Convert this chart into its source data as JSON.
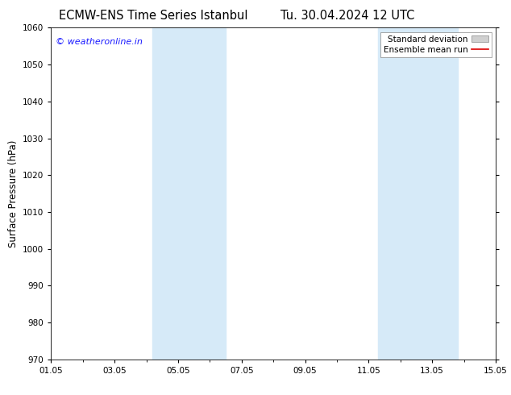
{
  "title_left": "ECMW-ENS Time Series Istanbul",
  "title_right": "Tu. 30.04.2024 12 UTC",
  "ylabel": "Surface Pressure (hPa)",
  "ylim": [
    970,
    1060
  ],
  "yticks": [
    970,
    980,
    990,
    1000,
    1010,
    1020,
    1030,
    1040,
    1050,
    1060
  ],
  "xtick_labels": [
    "01.05",
    "03.05",
    "05.05",
    "07.05",
    "09.05",
    "11.05",
    "13.05",
    "15.05"
  ],
  "xtick_positions": [
    0,
    2,
    4,
    6,
    8,
    10,
    12,
    14
  ],
  "x_total_days": 14,
  "shaded_bands": [
    {
      "x_start": 3.3,
      "x_end": 4.0,
      "color": "#d6eaf8"
    },
    {
      "x_start": 4.0,
      "x_end": 5.5,
      "color": "#d6eaf8"
    },
    {
      "x_start": 10.5,
      "x_end": 11.2,
      "color": "#d6eaf8"
    },
    {
      "x_start": 11.2,
      "x_end": 12.7,
      "color": "#d6eaf8"
    }
  ],
  "shade_color": "#d6eaf8",
  "watermark": "© weatheronline.in",
  "watermark_color": "#1a1aff",
  "legend_std_color": "#d0d0d0",
  "legend_mean_color": "#dd0000",
  "background_color": "#ffffff",
  "title_fontsize": 10.5,
  "ylabel_fontsize": 8.5,
  "tick_fontsize": 7.5,
  "legend_fontsize": 7.5,
  "watermark_fontsize": 8
}
